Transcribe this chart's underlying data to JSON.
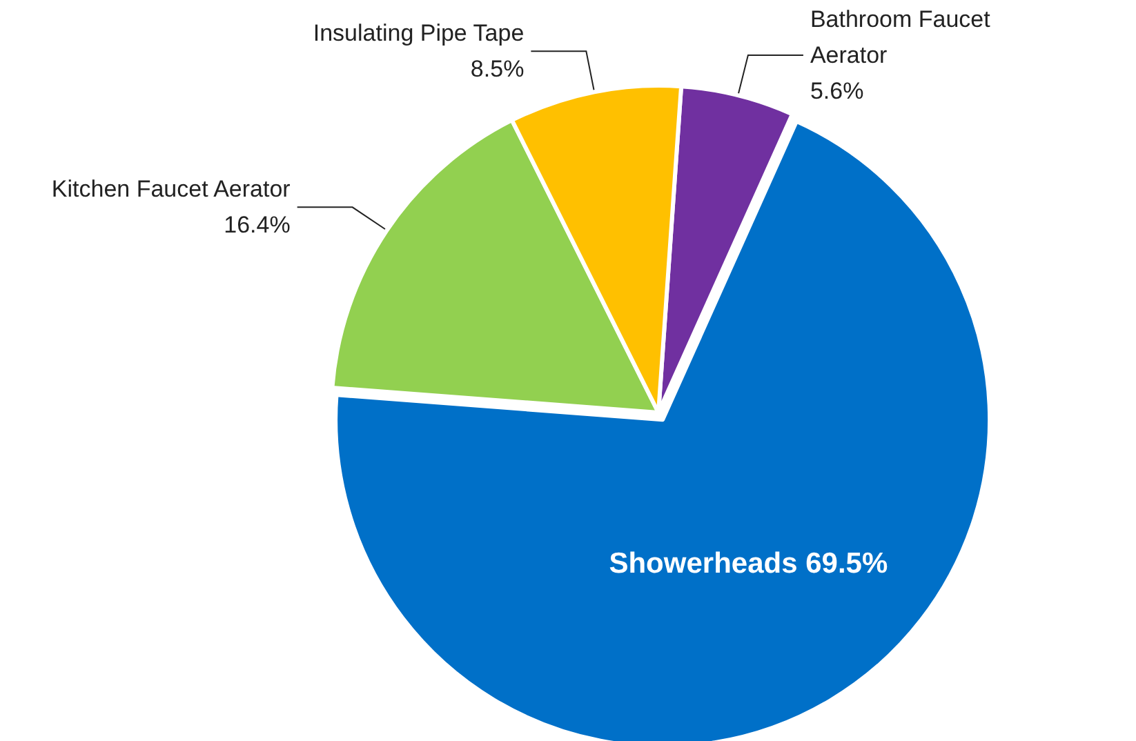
{
  "chart_data": {
    "type": "pie",
    "categories": [
      "Bathroom Faucet Aerator",
      "Showerheads",
      "Kitchen Faucet Aerator",
      "Insulating Pipe Tape"
    ],
    "values": [
      5.6,
      69.5,
      16.4,
      8.5
    ],
    "colors": [
      "#7030a0",
      "#0070c8",
      "#92d050",
      "#ffc000"
    ],
    "value_labels": [
      "5.6%",
      "69.5%",
      "16.4%",
      "8.5%"
    ]
  }
}
